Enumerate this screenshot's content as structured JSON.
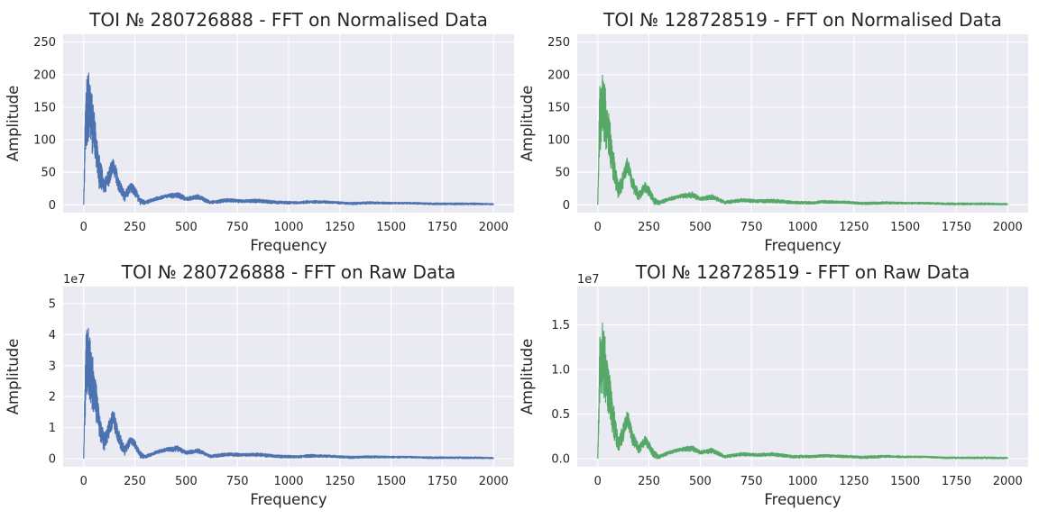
{
  "chart_data": [
    {
      "type": "line",
      "title": "TOI № 280726888 - FFT on Normalised Data",
      "xlabel": "Frequency",
      "ylabel": "Amplitude",
      "xlim": [
        -100,
        2100
      ],
      "ylim": [
        -12,
        262
      ],
      "xticks": [
        0,
        250,
        500,
        750,
        1000,
        1250,
        1500,
        1750,
        2000
      ],
      "yticks": [
        0,
        50,
        100,
        150,
        200,
        250
      ],
      "ytick_labels": [
        "0",
        "50",
        "100",
        "150",
        "200",
        "250"
      ],
      "y_offset_label": "",
      "color": "#4c72b0",
      "grid": true,
      "series": [
        {
          "x": [
            0,
            10,
            25,
            50,
            75,
            100,
            125,
            145,
            170,
            200,
            230,
            250,
            275,
            300,
            350,
            400,
            460,
            500,
            560,
            620,
            700,
            780,
            850,
            950,
            1050,
            1100,
            1200,
            1300,
            1400,
            1500,
            1600,
            1700,
            1800,
            1900,
            2000
          ],
          "y": [
            0,
            185,
            210,
            150,
            80,
            40,
            60,
            75,
            45,
            20,
            35,
            28,
            12,
            6,
            12,
            16,
            20,
            12,
            16,
            6,
            10,
            8,
            9,
            6,
            5,
            7,
            6,
            4,
            5,
            4,
            4,
            3,
            3,
            3,
            2
          ],
          "band": [
            0,
            110,
            115,
            80,
            55,
            25,
            30,
            25,
            25,
            15,
            15,
            15,
            12,
            6,
            6,
            6,
            10,
            6,
            8,
            5,
            6,
            5,
            6,
            5,
            4,
            5,
            4,
            4,
            4,
            3,
            3,
            3,
            3,
            3,
            2
          ]
        }
      ]
    },
    {
      "type": "line",
      "title": "TOI № 128728519 - FFT on Normalised Data",
      "xlabel": "Frequency",
      "ylabel": "Amplitude",
      "xlim": [
        -100,
        2100
      ],
      "ylim": [
        -12,
        262
      ],
      "xticks": [
        0,
        250,
        500,
        750,
        1000,
        1250,
        1500,
        1750,
        2000
      ],
      "yticks": [
        0,
        50,
        100,
        150,
        200,
        250
      ],
      "ytick_labels": [
        "0",
        "50",
        "100",
        "150",
        "200",
        "250"
      ],
      "y_offset_label": "",
      "color": "#55a868",
      "grid": true,
      "series": [
        {
          "x": [
            0,
            10,
            25,
            50,
            75,
            100,
            125,
            145,
            170,
            200,
            230,
            250,
            275,
            300,
            350,
            400,
            460,
            500,
            560,
            620,
            700,
            780,
            850,
            950,
            1050,
            1100,
            1200,
            1300,
            1400,
            1500,
            1600,
            1700,
            1800,
            1900,
            2000
          ],
          "y": [
            0,
            190,
            215,
            155,
            90,
            35,
            55,
            75,
            45,
            20,
            35,
            28,
            12,
            6,
            12,
            16,
            20,
            12,
            16,
            6,
            10,
            8,
            9,
            6,
            5,
            7,
            6,
            4,
            5,
            4,
            4,
            3,
            3,
            3,
            2
          ],
          "band": [
            0,
            115,
            115,
            85,
            55,
            25,
            30,
            25,
            25,
            15,
            15,
            15,
            12,
            6,
            6,
            6,
            10,
            6,
            8,
            5,
            6,
            5,
            6,
            5,
            4,
            5,
            4,
            4,
            4,
            3,
            3,
            3,
            3,
            3,
            2
          ]
        }
      ]
    },
    {
      "type": "line",
      "title": "TOI № 280726888 - FFT on Raw Data",
      "xlabel": "Frequency",
      "ylabel": "Amplitude",
      "xlim": [
        -100,
        2100
      ],
      "ylim": [
        -0.26,
        5.55
      ],
      "xticks": [
        0,
        250,
        500,
        750,
        1000,
        1250,
        1500,
        1750,
        2000
      ],
      "yticks": [
        0,
        1,
        2,
        3,
        4,
        5
      ],
      "ytick_labels": [
        "0",
        "1",
        "2",
        "3",
        "4",
        "5"
      ],
      "y_offset_label": "1e7",
      "color": "#4c72b0",
      "grid": true,
      "series": [
        {
          "x": [
            0,
            10,
            25,
            50,
            75,
            100,
            125,
            145,
            170,
            200,
            230,
            250,
            275,
            300,
            350,
            400,
            460,
            500,
            560,
            620,
            700,
            780,
            850,
            950,
            1050,
            1100,
            1200,
            1300,
            1400,
            1500,
            1600,
            1700,
            1800,
            1900,
            2000
          ],
          "y": [
            0,
            4.0,
            4.4,
            3.1,
            1.7,
            0.8,
            1.3,
            1.6,
            0.95,
            0.4,
            0.75,
            0.6,
            0.25,
            0.12,
            0.25,
            0.35,
            0.42,
            0.25,
            0.33,
            0.12,
            0.2,
            0.17,
            0.19,
            0.12,
            0.1,
            0.14,
            0.12,
            0.08,
            0.1,
            0.08,
            0.08,
            0.06,
            0.06,
            0.06,
            0.04
          ],
          "band": [
            0,
            2.3,
            2.4,
            1.7,
            1.15,
            0.55,
            0.65,
            0.55,
            0.55,
            0.3,
            0.3,
            0.3,
            0.25,
            0.12,
            0.12,
            0.12,
            0.2,
            0.12,
            0.16,
            0.1,
            0.12,
            0.1,
            0.12,
            0.1,
            0.08,
            0.1,
            0.08,
            0.08,
            0.08,
            0.06,
            0.06,
            0.06,
            0.06,
            0.06,
            0.04
          ]
        }
      ]
    },
    {
      "type": "line",
      "title": "TOI № 128728519 - FFT on Raw Data",
      "xlabel": "Frequency",
      "ylabel": "Amplitude",
      "xlim": [
        -100,
        2100
      ],
      "ylim": [
        -0.09,
        1.93
      ],
      "xticks": [
        0,
        250,
        500,
        750,
        1000,
        1250,
        1500,
        1750,
        2000
      ],
      "yticks": [
        0,
        0.5,
        1.0,
        1.5
      ],
      "ytick_labels": [
        "0.0",
        "0.5",
        "1.0",
        "1.5"
      ],
      "y_offset_label": "1e7",
      "color": "#55a868",
      "grid": true,
      "series": [
        {
          "x": [
            0,
            10,
            25,
            50,
            75,
            100,
            125,
            145,
            170,
            200,
            230,
            250,
            275,
            300,
            350,
            400,
            460,
            500,
            560,
            620,
            700,
            780,
            850,
            950,
            1050,
            1100,
            1200,
            1300,
            1400,
            1500,
            1600,
            1700,
            1800,
            1900,
            2000
          ],
          "y": [
            0,
            1.38,
            1.55,
            1.12,
            0.65,
            0.25,
            0.4,
            0.55,
            0.33,
            0.15,
            0.26,
            0.2,
            0.09,
            0.04,
            0.09,
            0.12,
            0.15,
            0.09,
            0.12,
            0.04,
            0.07,
            0.06,
            0.07,
            0.04,
            0.04,
            0.05,
            0.04,
            0.03,
            0.04,
            0.03,
            0.03,
            0.02,
            0.02,
            0.02,
            0.015
          ],
          "band": [
            0,
            0.82,
            0.82,
            0.6,
            0.4,
            0.18,
            0.22,
            0.18,
            0.18,
            0.11,
            0.11,
            0.11,
            0.09,
            0.04,
            0.04,
            0.04,
            0.07,
            0.04,
            0.06,
            0.035,
            0.04,
            0.035,
            0.04,
            0.035,
            0.03,
            0.035,
            0.03,
            0.03,
            0.03,
            0.02,
            0.02,
            0.02,
            0.02,
            0.02,
            0.015
          ]
        }
      ]
    }
  ]
}
